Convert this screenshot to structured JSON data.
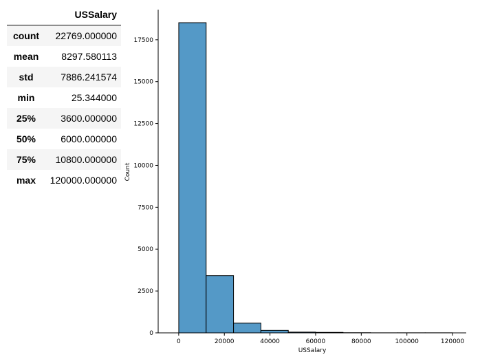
{
  "table": {
    "column_header": "USSalary",
    "rows": [
      {
        "label": "count",
        "value": "22769.000000"
      },
      {
        "label": "mean",
        "value": "8297.580113"
      },
      {
        "label": "std",
        "value": "7886.241574"
      },
      {
        "label": "min",
        "value": "25.344000"
      },
      {
        "label": "25%",
        "value": "3600.000000"
      },
      {
        "label": "50%",
        "value": "6000.000000"
      },
      {
        "label": "75%",
        "value": "10800.000000"
      },
      {
        "label": "max",
        "value": "120000.000000"
      }
    ]
  },
  "chart_data": {
    "type": "bar",
    "title": "",
    "xlabel": "USSalary",
    "ylabel": "Count",
    "xlim": [
      -9000,
      126000
    ],
    "ylim": [
      0,
      19300
    ],
    "x_ticks": [
      0,
      20000,
      40000,
      60000,
      80000,
      100000,
      120000
    ],
    "y_ticks": [
      0,
      2500,
      5000,
      7500,
      10000,
      12500,
      15000,
      17500
    ],
    "bins": [
      {
        "start": 25.344,
        "end": 12022.81,
        "count": 18520
      },
      {
        "start": 12022.81,
        "end": 24020.28,
        "count": 3420
      },
      {
        "start": 24020.28,
        "end": 36017.74,
        "count": 580
      },
      {
        "start": 36017.74,
        "end": 48015.21,
        "count": 150
      },
      {
        "start": 48015.21,
        "end": 60012.67,
        "count": 45
      },
      {
        "start": 60012.67,
        "end": 72010.14,
        "count": 30
      },
      {
        "start": 72010.14,
        "end": 84007.6,
        "count": 10
      },
      {
        "start": 84007.6,
        "end": 96005.07,
        "count": 4
      },
      {
        "start": 96005.07,
        "end": 108002.54,
        "count": 5
      },
      {
        "start": 108002.54,
        "end": 120000.0,
        "count": 5
      }
    ],
    "bar_color": "#5499c7",
    "edge_color": "#000000",
    "grid": false,
    "spines": [
      "left",
      "bottom"
    ]
  }
}
